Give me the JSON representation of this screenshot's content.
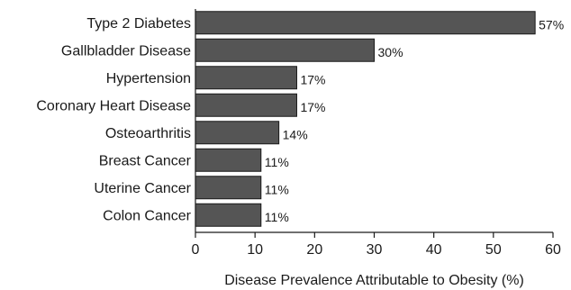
{
  "chart_data": {
    "type": "bar",
    "orientation": "horizontal",
    "categories": [
      "Type 2 Diabetes",
      "Gallbladder Disease",
      "Hypertension",
      "Coronary Heart Disease",
      "Osteoarthritis",
      "Breast Cancer",
      "Uterine Cancer",
      "Colon Cancer"
    ],
    "values": [
      57,
      30,
      17,
      17,
      14,
      11,
      11,
      11
    ],
    "data_labels": [
      "57%",
      "30%",
      "17%",
      "17%",
      "14%",
      "11%",
      "11%",
      "11%"
    ],
    "title": "",
    "xlabel": "Disease Prevalence Attributable to Obesity (%)",
    "ylabel": "",
    "xlim": [
      0,
      60
    ],
    "xticks": [
      0,
      10,
      20,
      30,
      40,
      50,
      60
    ],
    "grid": false,
    "bar_color": "#555555",
    "bar_edge_color": "#1a1a1a"
  }
}
